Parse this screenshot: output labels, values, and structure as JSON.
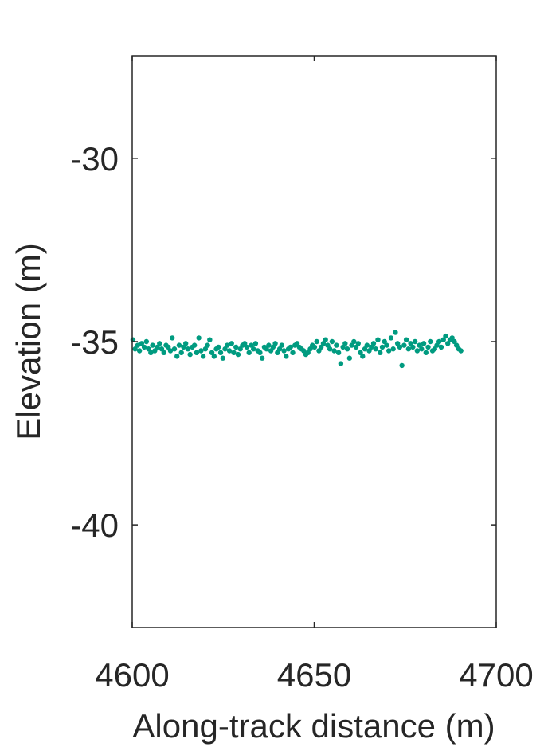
{
  "chart_data": {
    "type": "scatter",
    "title": "",
    "xlabel": "Along-track distance (m)",
    "ylabel": "Elevation (m)",
    "xlim": [
      4600,
      4700
    ],
    "ylim": [
      -42.8,
      -27.2
    ],
    "xticks": [
      4600,
      4650,
      4700
    ],
    "yticks": [
      -40,
      -35,
      -30
    ],
    "xtick_labels": [
      "4600",
      "4650",
      "4700"
    ],
    "ytick_labels": [
      "-40",
      "-35",
      "-30"
    ],
    "grid": false,
    "marker_color": "#009B80",
    "axis_color": "#262626",
    "series": [
      {
        "x": [
          4600.2,
          4600.8,
          4601.5,
          4602.0,
          4602.6,
          4603.3,
          4603.9,
          4604.5,
          4605.1,
          4605.6,
          4606.2,
          4606.9,
          4607.5,
          4608.1,
          4608.7,
          4609.3,
          4609.9,
          4610.5,
          4611.0,
          4611.6,
          4612.3,
          4612.9,
          4613.5,
          4614.1,
          4614.7,
          4615.3,
          4615.9,
          4616.5,
          4617.1,
          4617.7,
          4618.3,
          4618.9,
          4619.5,
          4620.1,
          4620.7,
          4621.3,
          4621.9,
          4622.5,
          4623.1,
          4623.7,
          4624.3,
          4624.9,
          4625.5,
          4626.1,
          4626.7,
          4627.3,
          4627.9,
          4628.5,
          4629.1,
          4629.7,
          4630.3,
          4630.9,
          4631.5,
          4632.1,
          4632.7,
          4633.3,
          4633.9,
          4634.5,
          4635.1,
          4635.7,
          4636.3,
          4636.9,
          4637.5,
          4638.1,
          4638.7,
          4639.3,
          4639.9,
          4640.5,
          4641.1,
          4641.7,
          4642.3,
          4642.9,
          4643.5,
          4644.1,
          4644.7,
          4645.3,
          4645.9,
          4646.5,
          4647.1,
          4647.7,
          4648.3,
          4648.9,
          4649.5,
          4650.1,
          4650.7,
          4651.3,
          4651.9,
          4652.5,
          4653.1,
          4653.7,
          4654.3,
          4654.9,
          4655.5,
          4656.1,
          4656.7,
          4657.3,
          4657.9,
          4658.5,
          4659.1,
          4659.7,
          4660.3,
          4660.9,
          4661.5,
          4662.1,
          4662.7,
          4663.3,
          4663.9,
          4664.5,
          4665.1,
          4665.7,
          4666.3,
          4666.9,
          4667.5,
          4668.1,
          4668.7,
          4669.3,
          4669.9,
          4670.5,
          4671.1,
          4671.7,
          4672.3,
          4672.9,
          4673.5,
          4674.1,
          4674.7,
          4675.3,
          4675.9,
          4676.5,
          4677.1,
          4677.7,
          4678.3,
          4678.9,
          4679.5,
          4680.1,
          4680.7,
          4681.3,
          4681.9,
          4682.5,
          4683.1,
          4683.7,
          4684.3,
          4684.9,
          4685.5,
          4686.1,
          4686.7,
          4687.3,
          4687.9,
          4688.5,
          4689.1,
          4689.7,
          4690.3
        ],
        "y": [
          -34.95,
          -35.2,
          -35.1,
          -35.25,
          -35.05,
          -35.15,
          -35.0,
          -35.2,
          -35.3,
          -35.1,
          -35.25,
          -35.15,
          -35.05,
          -35.2,
          -35.3,
          -35.1,
          -35.15,
          -35.25,
          -34.9,
          -35.2,
          -35.4,
          -35.1,
          -35.3,
          -35.15,
          -35.05,
          -35.2,
          -35.35,
          -35.15,
          -35.1,
          -35.3,
          -34.9,
          -35.25,
          -35.4,
          -35.2,
          -35.1,
          -34.95,
          -35.3,
          -35.4,
          -35.2,
          -35.15,
          -35.3,
          -35.45,
          -35.2,
          -35.1,
          -35.25,
          -35.05,
          -35.3,
          -35.15,
          -35.35,
          -35.2,
          -35.1,
          -35.05,
          -35.15,
          -35.3,
          -35.1,
          -35.2,
          -35.05,
          -35.25,
          -35.3,
          -35.45,
          -35.15,
          -35.2,
          -35.1,
          -35.25,
          -35.15,
          -35.05,
          -35.3,
          -35.2,
          -35.1,
          -35.25,
          -35.4,
          -35.2,
          -35.15,
          -35.3,
          -35.1,
          -35.05,
          -35.15,
          -35.2,
          -35.25,
          -35.35,
          -35.3,
          -35.2,
          -35.1,
          -35.15,
          -35.0,
          -35.25,
          -35.15,
          -35.05,
          -34.95,
          -35.1,
          -35.2,
          -35.0,
          -35.25,
          -35.1,
          -35.3,
          -35.6,
          -35.15,
          -35.05,
          -35.2,
          -35.45,
          -35.1,
          -35.0,
          -35.15,
          -35.05,
          -35.3,
          -35.4,
          -35.2,
          -35.1,
          -35.25,
          -35.15,
          -35.05,
          -35.2,
          -34.95,
          -35.3,
          -35.15,
          -35.0,
          -35.1,
          -35.25,
          -34.9,
          -35.2,
          -34.75,
          -35.05,
          -35.15,
          -35.65,
          -35.1,
          -34.95,
          -35.2,
          -35.05,
          -35.15,
          -35.0,
          -35.25,
          -35.1,
          -35.2,
          -35.05,
          -35.3,
          -35.15,
          -35.0,
          -35.25,
          -35.2,
          -35.1,
          -35.0,
          -35.15,
          -34.95,
          -34.85,
          -35.05,
          -34.95,
          -34.9,
          -35.0,
          -35.1,
          -35.2,
          -35.25
        ]
      }
    ]
  }
}
